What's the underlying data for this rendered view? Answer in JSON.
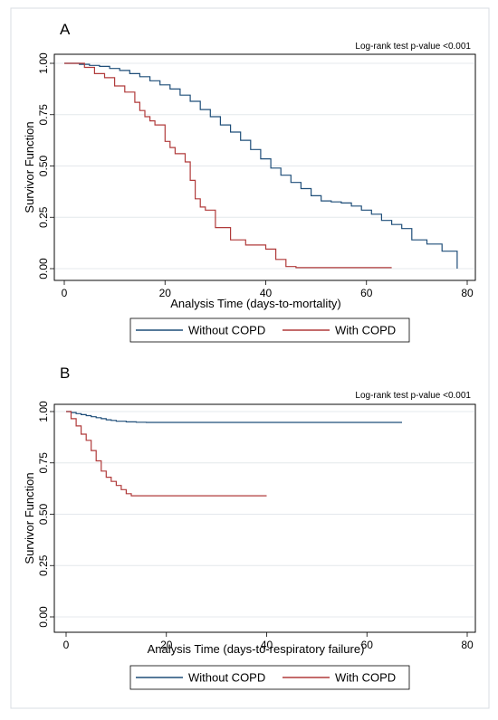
{
  "chart_data": [
    {
      "type": "line",
      "panel_label": "A",
      "annotation": "Log-rank test p-value <0.001",
      "xlabel": "Analysis Time (days-to-mortality)",
      "ylabel": "Survivor Function",
      "xlim": [
        0,
        80
      ],
      "ylim": [
        0,
        1
      ],
      "x_ticks": [
        "0",
        "20",
        "40",
        "60",
        "80"
      ],
      "y_ticks": [
        "0.00",
        "0.25",
        "0.50",
        "0.75",
        "1.00"
      ],
      "grid": true,
      "legend_position": "bottom",
      "series": [
        {
          "name": "Without COPD",
          "color": "#1f4e79",
          "x": [
            0,
            3,
            5,
            7,
            9,
            11,
            13,
            15,
            17,
            19,
            21,
            23,
            25,
            27,
            29,
            31,
            33,
            35,
            37,
            39,
            41,
            43,
            45,
            47,
            49,
            51,
            53,
            55,
            57,
            59,
            61,
            63,
            65,
            67,
            69,
            72,
            75,
            78
          ],
          "y": [
            1.0,
            0.995,
            0.99,
            0.985,
            0.975,
            0.965,
            0.95,
            0.935,
            0.915,
            0.895,
            0.875,
            0.845,
            0.815,
            0.775,
            0.74,
            0.7,
            0.665,
            0.625,
            0.58,
            0.535,
            0.49,
            0.455,
            0.42,
            0.39,
            0.355,
            0.33,
            0.325,
            0.32,
            0.305,
            0.285,
            0.265,
            0.235,
            0.215,
            0.195,
            0.14,
            0.12,
            0.085,
            0.0
          ]
        },
        {
          "name": "With COPD",
          "color": "#b03a3a",
          "x": [
            0,
            4,
            6,
            8,
            10,
            12,
            14,
            15,
            16,
            17,
            18,
            20,
            21,
            22,
            24,
            25,
            26,
            27,
            28,
            30,
            33,
            36,
            40,
            42,
            44,
            46,
            65
          ],
          "y": [
            1.0,
            0.98,
            0.95,
            0.93,
            0.89,
            0.86,
            0.81,
            0.77,
            0.74,
            0.72,
            0.7,
            0.62,
            0.59,
            0.56,
            0.52,
            0.43,
            0.34,
            0.3,
            0.285,
            0.2,
            0.14,
            0.115,
            0.095,
            0.045,
            0.01,
            0.005,
            0.005
          ]
        }
      ]
    },
    {
      "type": "line",
      "panel_label": "B",
      "annotation": "Log-rank test p-value <0.001",
      "xlabel": "Analysis Time (days-to-respiratory failure)",
      "ylabel": "Survivor Function",
      "xlim": [
        0,
        80
      ],
      "ylim": [
        0,
        1
      ],
      "x_ticks": [
        "0",
        "20",
        "40",
        "60",
        "80"
      ],
      "y_ticks": [
        "0.00",
        "0.25",
        "0.50",
        "0.75",
        "1.00"
      ],
      "grid": true,
      "legend_position": "bottom",
      "series": [
        {
          "name": "Without COPD",
          "color": "#1f4e79",
          "x": [
            0,
            1,
            2,
            3,
            4,
            5,
            6,
            7,
            8,
            9,
            10,
            12,
            14,
            16,
            67
          ],
          "y": [
            1.0,
            0.995,
            0.99,
            0.985,
            0.98,
            0.975,
            0.97,
            0.965,
            0.96,
            0.957,
            0.953,
            0.95,
            0.948,
            0.947,
            0.947
          ]
        },
        {
          "name": "With COPD",
          "color": "#b03a3a",
          "x": [
            0,
            1,
            2,
            3,
            4,
            5,
            6,
            7,
            8,
            9,
            10,
            11,
            12,
            13,
            40
          ],
          "y": [
            1.0,
            0.965,
            0.93,
            0.89,
            0.86,
            0.81,
            0.76,
            0.71,
            0.68,
            0.66,
            0.64,
            0.62,
            0.6,
            0.59,
            0.59
          ]
        }
      ]
    }
  ]
}
